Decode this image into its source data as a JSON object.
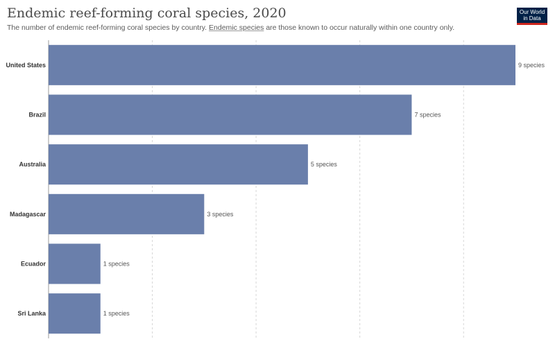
{
  "header": {
    "title": "Endemic reef-forming coral species, 2020",
    "subtitle_before": "The number of endemic reef-forming coral species by country.",
    "subtitle_link": "Endemic species",
    "subtitle_after": "are those known to occur naturally within one country only.",
    "logo_line1": "Our World",
    "logo_line2": "in Data"
  },
  "chart_data": {
    "type": "bar",
    "orientation": "horizontal",
    "categories": [
      "United States",
      "Brazil",
      "Australia",
      "Madagascar",
      "Ecuador",
      "Sri Lanka"
    ],
    "values": [
      9,
      7,
      5,
      3,
      1,
      1
    ],
    "data_labels": [
      "9 species",
      "7 species",
      "5 species",
      "3 species",
      "1 species",
      "1 species"
    ],
    "xlim": [
      0,
      9
    ],
    "grid": true,
    "bar_color": "#6a7fab"
  }
}
